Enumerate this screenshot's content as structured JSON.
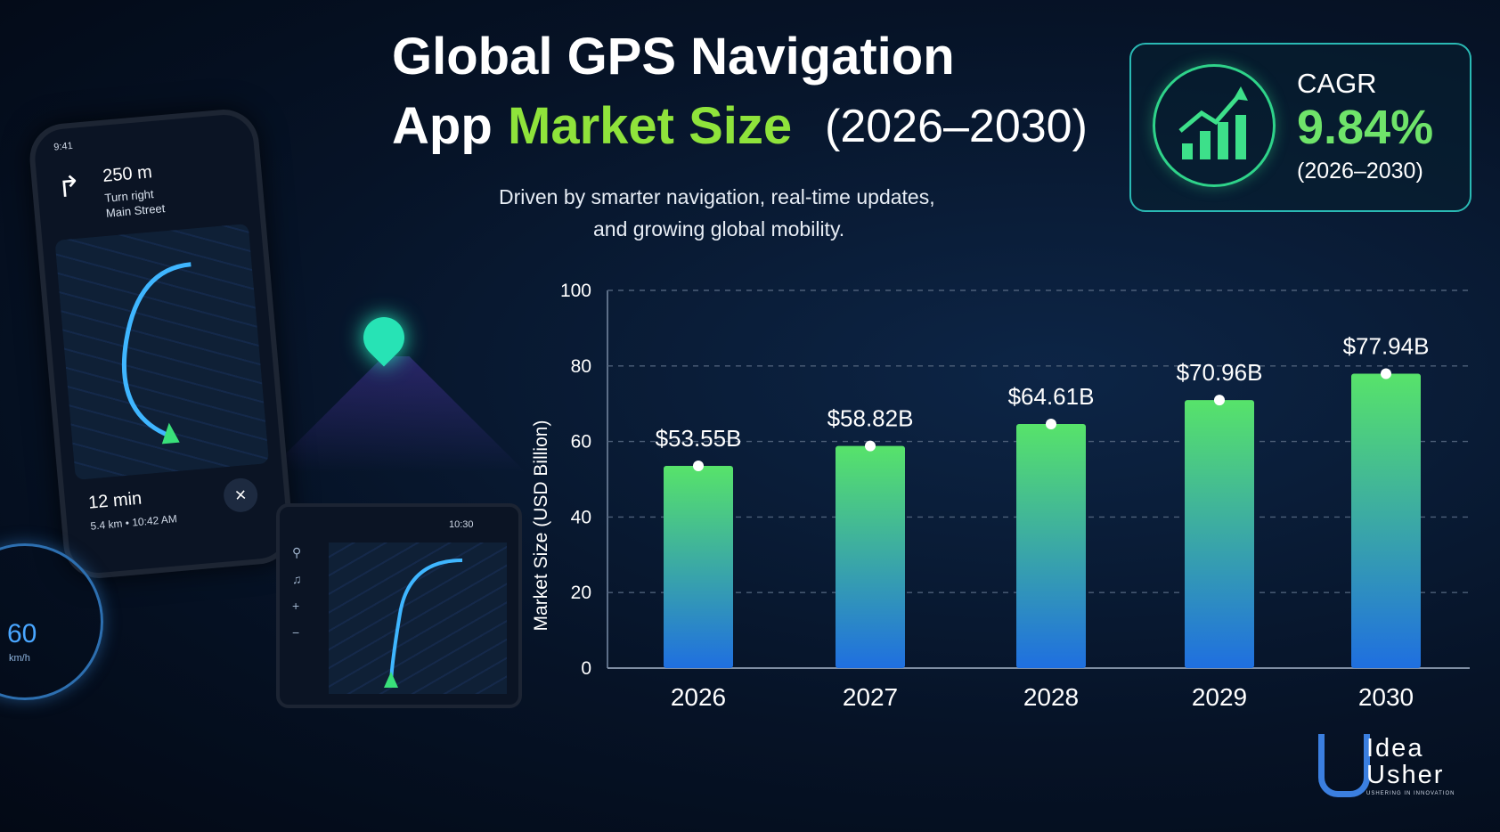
{
  "header": {
    "title_line1": "Global GPS Navigation",
    "title_line2_a": "App",
    "title_line2_b": "Market Size",
    "title_line2_c": "(2026–2030)",
    "subtitle_line1": "Driven by smarter navigation, real-time updates,",
    "subtitle_line2": "and growing global mobility."
  },
  "cagr": {
    "label": "CAGR",
    "value": "9.84%",
    "period": "(2026–2030)",
    "icon": "growth-chart-icon"
  },
  "phone": {
    "status_time": "9:41",
    "distance": "250 m",
    "turn": "Turn right",
    "street": "Main Street",
    "time": "12 min",
    "eta": "5.4 km • 10:42 AM",
    "turn_icon": "turn-right-arrow-icon",
    "close_icon": "close-icon"
  },
  "dashboard": {
    "screen_time": "10:30",
    "speed": "60",
    "speed_unit": "km/h"
  },
  "logo": {
    "line1": "Idea",
    "line2": "Usher",
    "tagline": "USHERING IN INNOVATION"
  },
  "colors": {
    "accent_green": "#8fe33b",
    "bar_top": "#57e36a",
    "bar_bottom": "#1f6fe0",
    "card_border": "#2ab9b4"
  },
  "chart_data": {
    "type": "bar",
    "categories": [
      "2026",
      "2027",
      "2028",
      "2029",
      "2030"
    ],
    "values": [
      53.55,
      58.82,
      64.61,
      70.96,
      77.94
    ],
    "data_labels": [
      "$53.55B",
      "$58.82B",
      "$64.61B",
      "$70.96B",
      "$77.94B"
    ],
    "ylabel": "Market Size (USD Billion)",
    "xlabel": "",
    "ylim": [
      0,
      100
    ],
    "yticks": [
      0,
      20,
      40,
      60,
      80,
      100
    ],
    "grid": true
  }
}
